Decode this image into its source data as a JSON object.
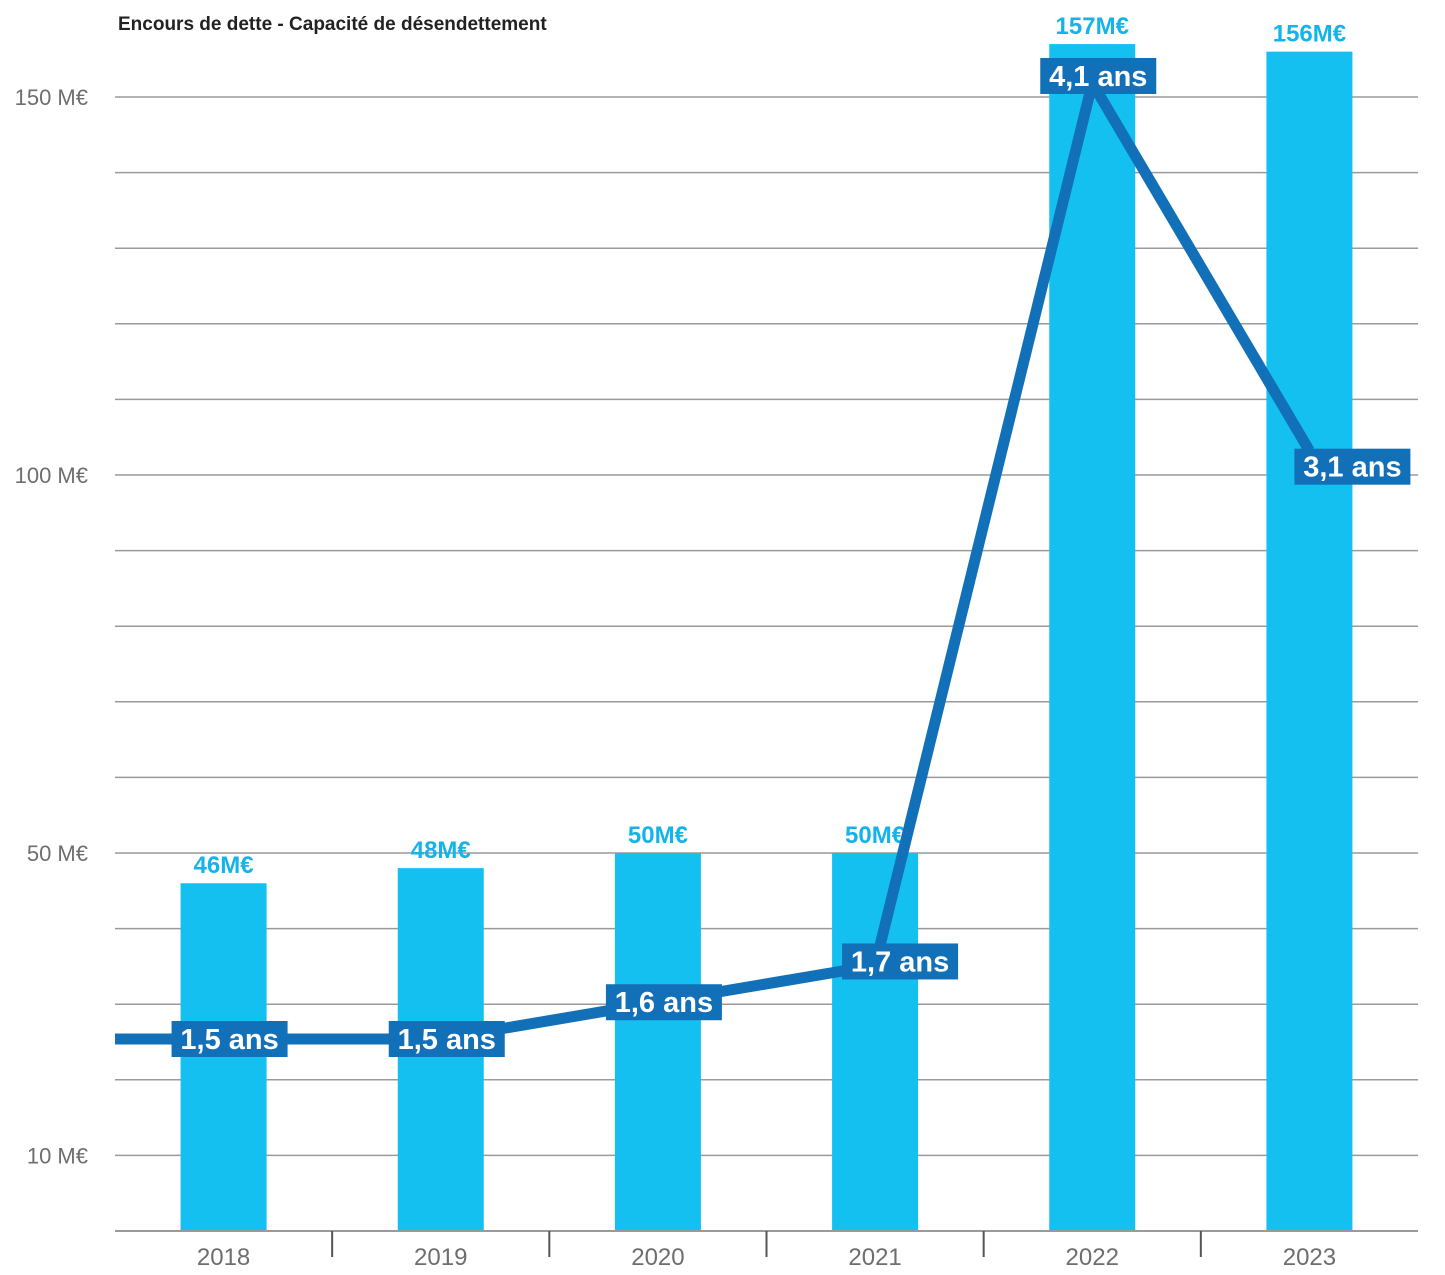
{
  "chart_data": {
    "type": "bar",
    "title": "Encours de dette - Capacité de désendettement",
    "categories": [
      "2018",
      "2019",
      "2020",
      "2021",
      "2022",
      "2023"
    ],
    "series": [
      {
        "type": "bar",
        "values": [
          46,
          48,
          50,
          50,
          157,
          156
        ],
        "labels": [
          "46M€",
          "48M€",
          "50M€",
          "50M€",
          "157M€",
          "156M€"
        ],
        "color": "#14c0f0"
      },
      {
        "type": "line",
        "values": [
          1.5,
          1.5,
          1.6,
          1.7,
          4.1,
          3.1
        ],
        "labels": [
          "1,5 ans",
          "1,5 ans",
          "1,6 ans",
          "1,7 ans",
          "4,1 ans",
          "3,1 ans"
        ],
        "color": "#1270b8"
      }
    ],
    "y_axis": {
      "ticks": [
        {
          "value": 10,
          "label": "10 M€"
        },
        {
          "value": 50,
          "label": "50 M€"
        },
        {
          "value": 100,
          "label": "100 M€"
        },
        {
          "value": 150,
          "label": "150 M€"
        }
      ],
      "ylim": [
        0,
        150
      ],
      "grid": true,
      "gridline_step": 10
    }
  },
  "colors": {
    "bar": "#14c0f0",
    "line": "#1270b8",
    "bar_label": "#14b4ea",
    "grid": "#9a9a9a",
    "axis_text": "#6e6e6e"
  }
}
